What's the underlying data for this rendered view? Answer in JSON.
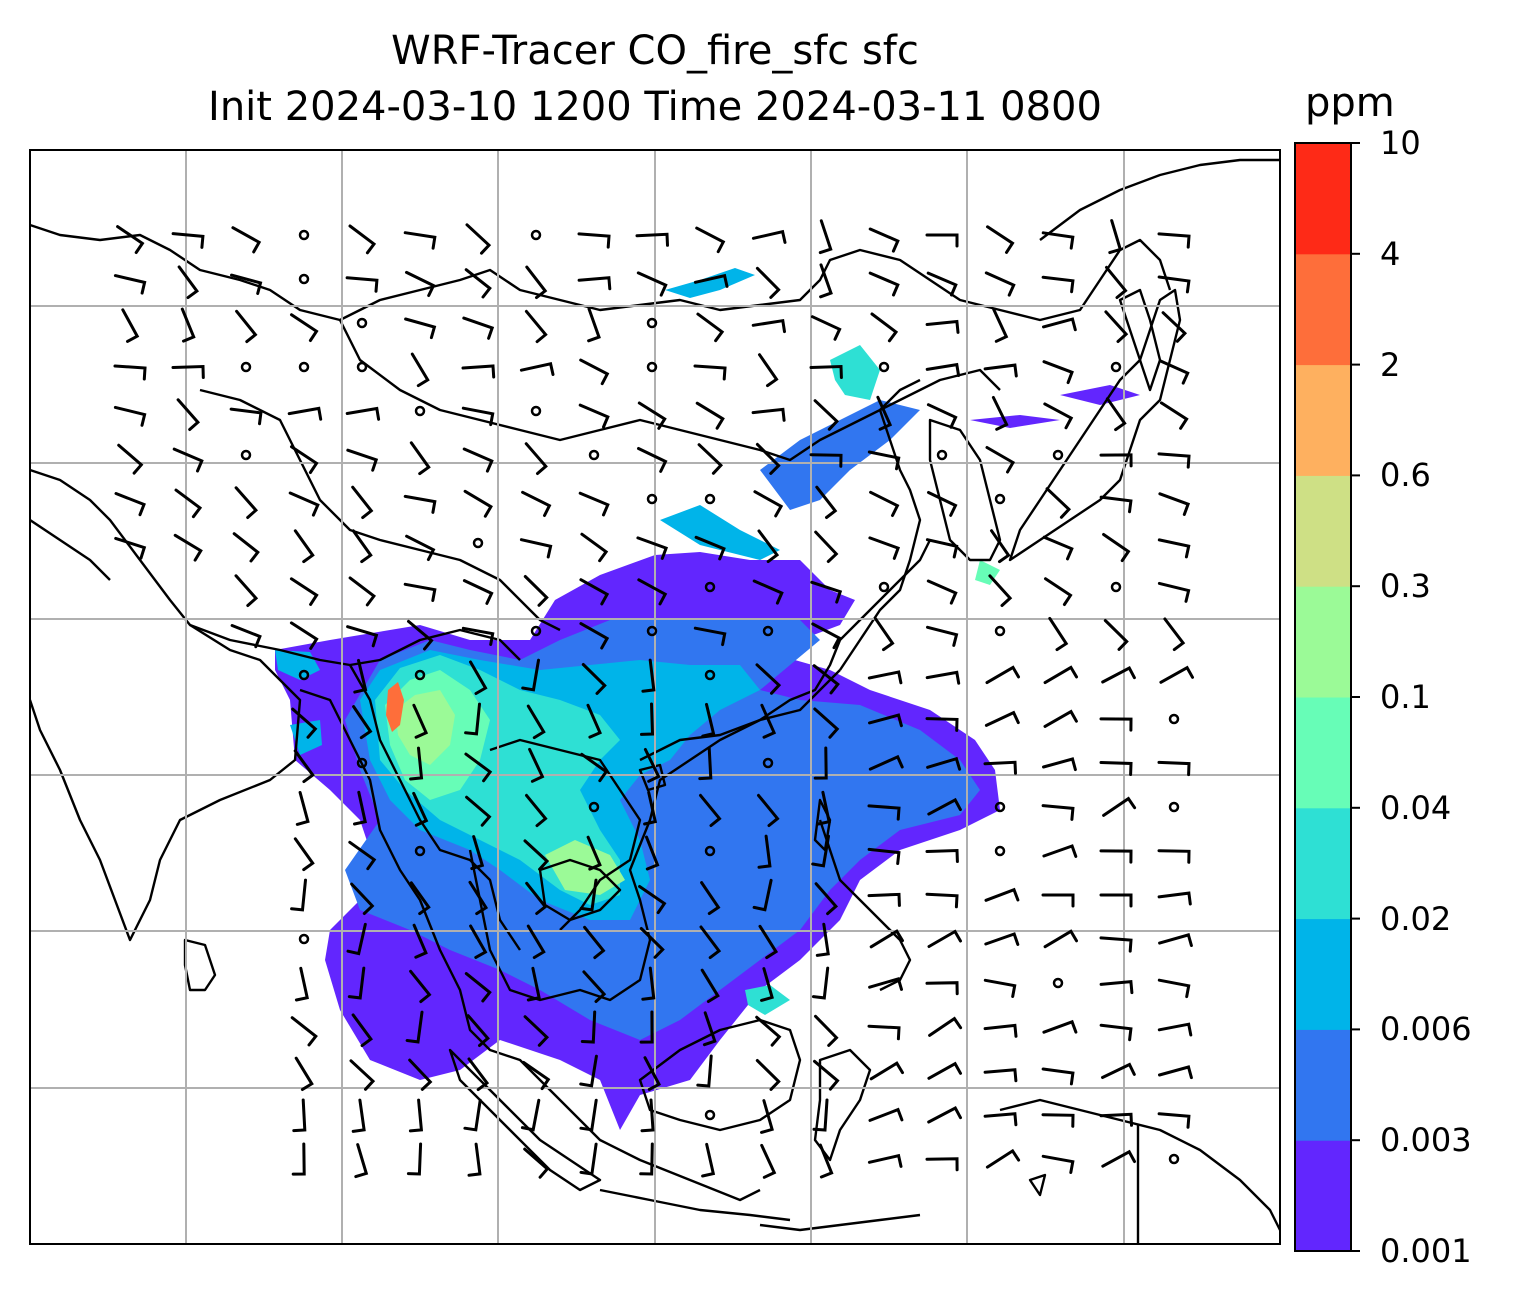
{
  "title": {
    "line1": "WRF-Tracer CO_fire_sfc sfc",
    "line2": "Init 2024-03-10 1200 Time 2024-03-11 0800"
  },
  "colorbar": {
    "unit": "ppm",
    "levels": [
      "0.001",
      "0.003",
      "0.006",
      "0.02",
      "0.04",
      "0.1",
      "0.3",
      "0.6",
      "2",
      "4",
      "10"
    ],
    "colors": [
      "#6226fe",
      "#3176f0",
      "#00b4e9",
      "#2ee0d4",
      "#67fdb7",
      "#9bfa97",
      "#cee085",
      "#feb05f",
      "#fe6e3a",
      "#fe2a17"
    ]
  },
  "map": {
    "gridlines": true,
    "tracer_colors": {
      "base": "#6226fe",
      "low": "#3176f0",
      "mid": "#00b4e9",
      "cyan": "#2ee0d4",
      "green": "#67fdb7",
      "lime": "#9bfa97",
      "hot": "#fe6e3a"
    }
  }
}
